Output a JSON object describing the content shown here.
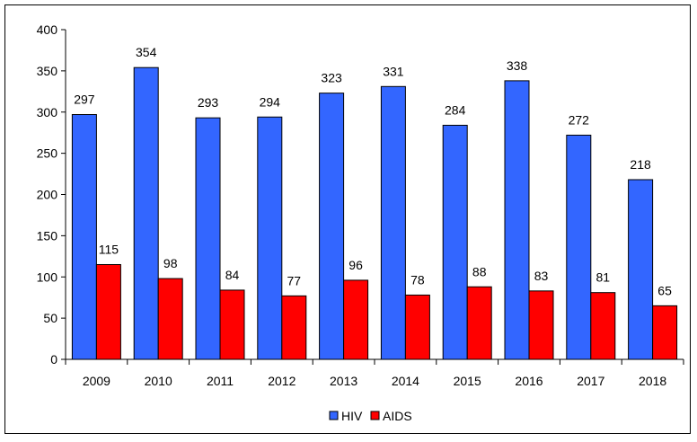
{
  "chart_data": {
    "type": "bar",
    "categories": [
      "2009",
      "2010",
      "2011",
      "2012",
      "2013",
      "2014",
      "2015",
      "2016",
      "2017",
      "2018"
    ],
    "series": [
      {
        "name": "HIV",
        "color": "#3366ff",
        "values": [
          297,
          354,
          293,
          294,
          323,
          331,
          284,
          338,
          272,
          218
        ]
      },
      {
        "name": "AIDS",
        "color": "#ff0000",
        "values": [
          115,
          98,
          84,
          77,
          96,
          78,
          88,
          83,
          81,
          65
        ]
      }
    ],
    "title": "",
    "xlabel": "",
    "ylabel": "",
    "ylim": [
      0,
      400
    ],
    "yticks": [
      0,
      50,
      100,
      150,
      200,
      250,
      300,
      350,
      400
    ],
    "grid": false,
    "legend": "bottom",
    "data_labels": true
  }
}
